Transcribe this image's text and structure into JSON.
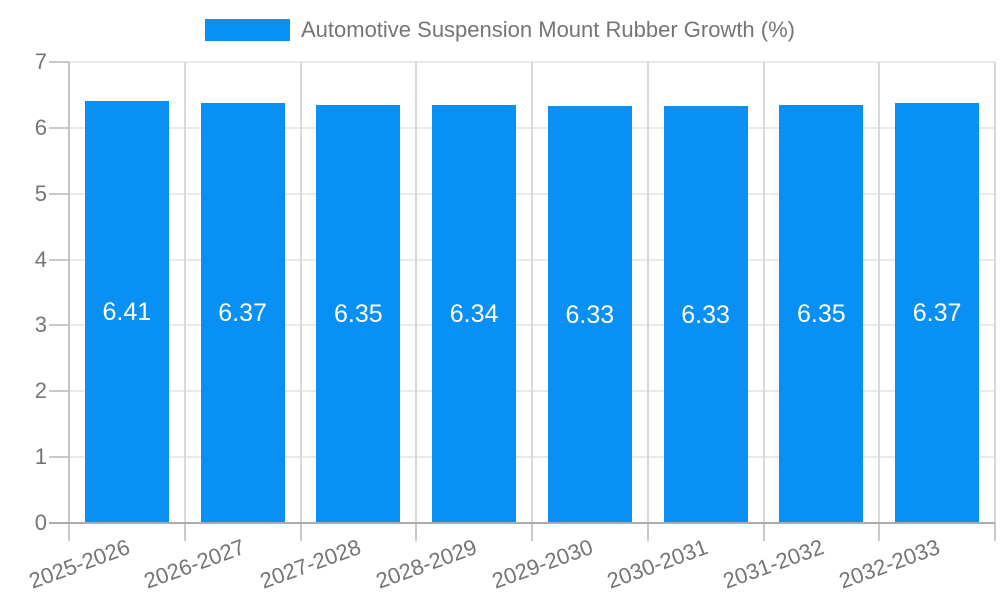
{
  "legend": {
    "swatch_icon": "legend-color-swatch"
  },
  "colors": {
    "bar": "#0990f4",
    "bar_value_text": "#ffffff",
    "axis_text": "#757575",
    "x_axis_line": "#ababab",
    "y_axis_line": "#c4c4c4",
    "tick": "#c9c9c9",
    "hgrid": "#e9e9e9",
    "vgrid": "#d9d9d9"
  },
  "chart_data": {
    "type": "bar",
    "title": "Automotive Suspension Mount Rubber Growth (%)",
    "categories": [
      "2025-2026",
      "2026-2027",
      "2027-2028",
      "2028-2029",
      "2029-2030",
      "2030-2031",
      "2031-2032",
      "2032-2033"
    ],
    "values": [
      6.41,
      6.37,
      6.35,
      6.34,
      6.33,
      6.33,
      6.35,
      6.37
    ],
    "bar_labels": [
      "6.41",
      "6.37",
      "6.35",
      "6.34",
      "6.33",
      "6.33",
      "6.35",
      "6.37"
    ],
    "xlabel": "",
    "ylabel": "",
    "ylim": [
      0,
      7
    ],
    "yticks": [
      0,
      1,
      2,
      3,
      4,
      5,
      6,
      7
    ],
    "grid": true,
    "legend_position": "top-center",
    "bar_labels_visible": true,
    "x_label_rotation_deg": -20
  }
}
